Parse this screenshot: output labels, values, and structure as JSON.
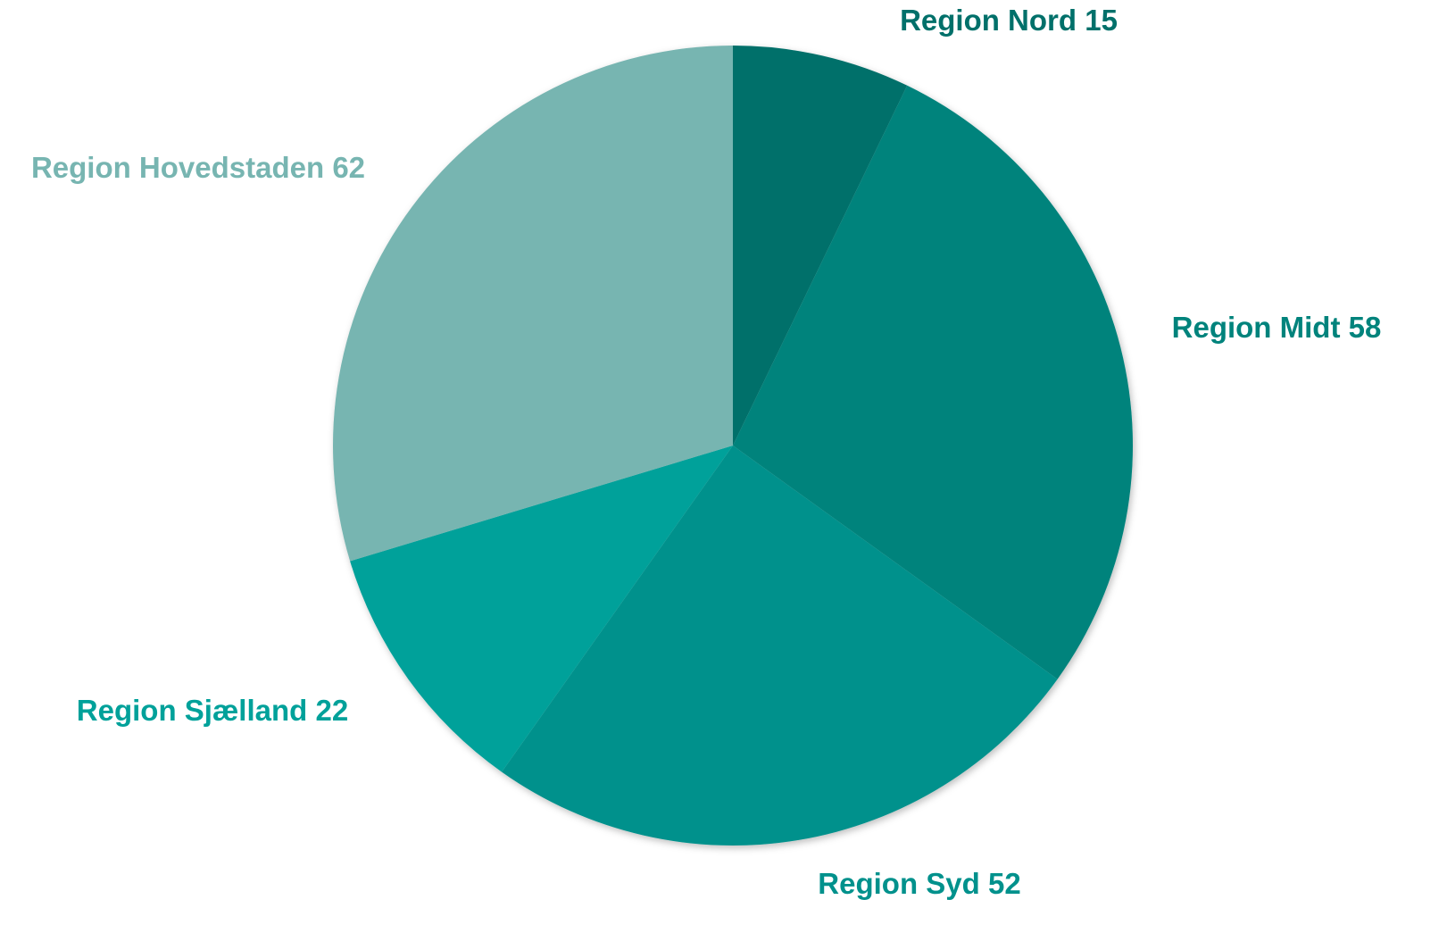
{
  "chart_data": {
    "type": "pie",
    "categories": [
      "Region Nord",
      "Region Midt",
      "Region Syd",
      "Region Sjælland",
      "Region Hovedstaden"
    ],
    "values": [
      15,
      58,
      52,
      22,
      62
    ],
    "colors": [
      "#00706a",
      "#00837c",
      "#00918c",
      "#00a19a",
      "#77b5b1"
    ]
  }
}
